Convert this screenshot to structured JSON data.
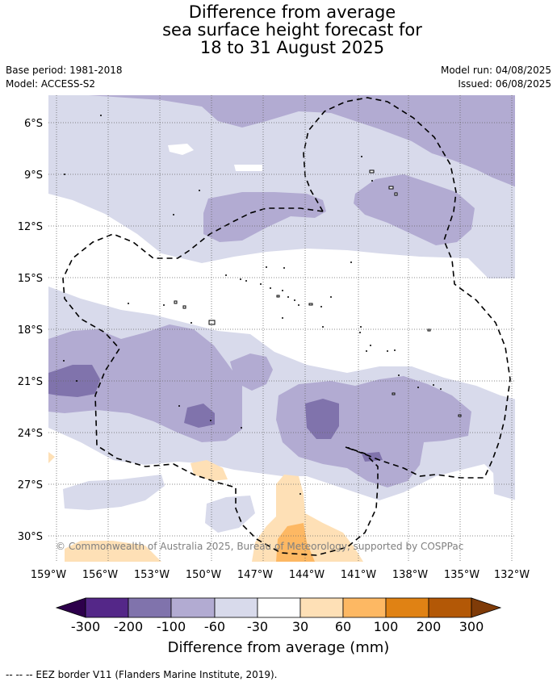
{
  "title": {
    "line1": "Difference from average",
    "line2": "sea surface height forecast for",
    "line3": "18 to 31 August 2025"
  },
  "meta": {
    "base_period": "Base period: 1981-2018",
    "model": "Model: ACCESS-S2",
    "model_run": "Model run: 04/08/2025",
    "issued": "Issued: 06/08/2025"
  },
  "map": {
    "copyright": "© Commonwealth of Australia 2025, Bureau of Meteorology, supported by COSPPac",
    "lon_ticks": [
      "159°W",
      "156°W",
      "153°W",
      "150°W",
      "147°W",
      "144°W",
      "141°W",
      "138°W",
      "135°W",
      "132°W"
    ],
    "lat_ticks": [
      "6°S",
      "9°S",
      "12°S",
      "15°S",
      "18°S",
      "21°S",
      "24°S",
      "27°S",
      "30°S"
    ],
    "lon_range": [
      -159,
      -132
    ],
    "lat_range": [
      -32,
      -4.5
    ]
  },
  "colorbar": {
    "label": "Difference from average (mm)",
    "ticks": [
      "-300",
      "-200",
      "-100",
      "-60",
      "-30",
      "30",
      "60",
      "100",
      "200",
      "300"
    ],
    "colors": {
      "under": "#2d004b",
      "bins": [
        "#542788",
        "#8073ac",
        "#b2abd2",
        "#d8daeb",
        "#ffffff",
        "#fee0b6",
        "#fdb863",
        "#e08214",
        "#b35806"
      ],
      "over": "#7f3b08"
    }
  },
  "footer": {
    "legend": "--  --  -- EEZ border V11 (Flanders Marine Institute, 2019)."
  }
}
